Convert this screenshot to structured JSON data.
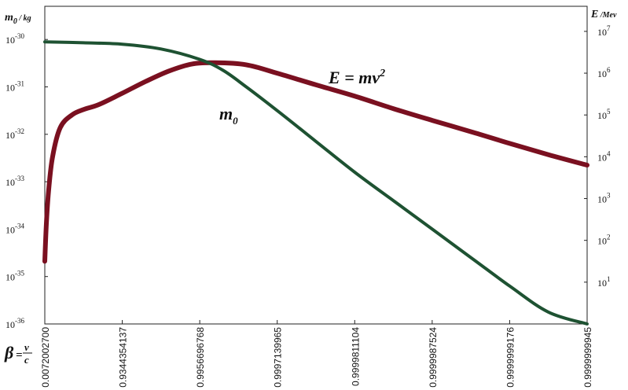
{
  "chart_data": {
    "type": "line",
    "title": "",
    "y_left_label": "m0 / kg",
    "y_left_label_parts": {
      "main": "m",
      "sub": "0",
      "unit": " / kg"
    },
    "y_right_label": "E / Mev",
    "y_right_label_parts": {
      "main": "E",
      "unit": " /Mev"
    },
    "x_label": "β = v / c",
    "x_label_parts": {
      "beta": "β",
      "eq": "=",
      "num": "v",
      "den": "c"
    },
    "x_scale": "categorical",
    "x_ticks": [
      "0.0072002700",
      "0.9344354137",
      "0.9956696768",
      "0.9997139965",
      "0.9999811104",
      "0.9999987524",
      "0.9999999176",
      "0.9999999945"
    ],
    "y_left_scale": "log",
    "y_left_ticks": [
      {
        "base": "10",
        "exp": "-30",
        "value": -30
      },
      {
        "base": "10",
        "exp": "-31",
        "value": -31
      },
      {
        "base": "10",
        "exp": "-32",
        "value": -32
      },
      {
        "base": "10",
        "exp": "-33",
        "value": -33
      },
      {
        "base": "10",
        "exp": "-34",
        "value": -34
      },
      {
        "base": "10",
        "exp": "-35",
        "value": -35
      },
      {
        "base": "10",
        "exp": "-36",
        "value": -36
      }
    ],
    "y_left_range_log10": [
      -36,
      -29.3
    ],
    "y_right_scale": "log",
    "y_right_ticks": [
      {
        "base": "10",
        "exp": "7",
        "value": 7
      },
      {
        "base": "10",
        "exp": "6",
        "value": 6
      },
      {
        "base": "10",
        "exp": "5",
        "value": 5
      },
      {
        "base": "10",
        "exp": "4",
        "value": 4
      },
      {
        "base": "10",
        "exp": "3",
        "value": 3
      },
      {
        "base": "10",
        "exp": "2",
        "value": 2
      },
      {
        "base": "10",
        "exp": "1",
        "value": 1
      }
    ],
    "y_right_range_log10": [
      0.0,
      7.6
    ],
    "series": [
      {
        "name": "E = mv2",
        "name_parts": {
          "lhs": "E",
          "eq": " = ",
          "rhs": "mv",
          "sup": "2"
        },
        "axis": "right",
        "color": "#7a1020",
        "x_index": [
          0,
          0.02,
          0.05,
          0.1,
          0.2,
          0.35,
          0.5,
          0.7,
          1.0,
          1.3,
          1.6,
          1.9,
          2.2,
          2.6,
          3.0,
          3.5,
          4.0,
          4.5,
          5.0,
          5.5,
          6.0,
          6.5,
          7.0
        ],
        "log10_values": [
          1.5,
          2.4,
          3.2,
          4.0,
          4.7,
          5.0,
          5.13,
          5.25,
          5.52,
          5.8,
          6.05,
          6.22,
          6.25,
          6.2,
          6.0,
          5.72,
          5.45,
          5.15,
          4.87,
          4.6,
          4.32,
          4.05,
          3.8
        ]
      },
      {
        "name": "m0",
        "name_parts": {
          "main": "m",
          "sub": "0"
        },
        "axis": "left",
        "color": "#1e5232",
        "x_index": [
          0,
          0.5,
          1.0,
          1.5,
          2.0,
          2.3,
          2.6,
          3.0,
          3.5,
          4.0,
          4.5,
          5.0,
          5.5,
          6.0,
          6.5,
          7.0
        ],
        "log10_values": [
          -30.05,
          -30.07,
          -30.1,
          -30.2,
          -30.42,
          -30.65,
          -31.0,
          -31.5,
          -32.15,
          -32.8,
          -33.4,
          -34.0,
          -34.6,
          -35.2,
          -35.75,
          -36.0
        ]
      }
    ],
    "grid": false,
    "legend": "none"
  }
}
